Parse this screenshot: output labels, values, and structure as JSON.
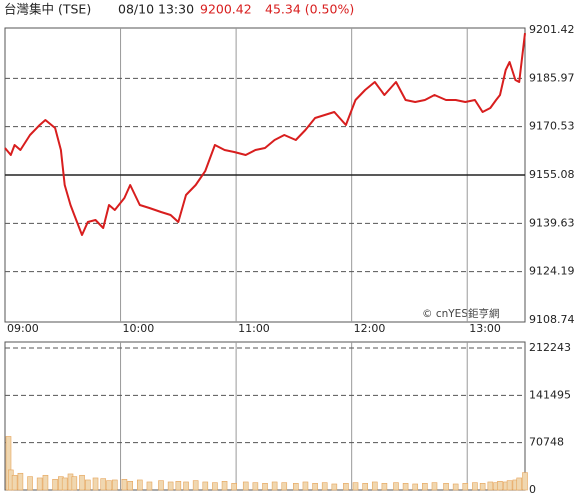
{
  "header": {
    "name": "台灣集中 (TSE)",
    "time": "08/10 13:30",
    "price": 9200.42,
    "change": "45.34 (0.50%)",
    "watermark": "© cnYES鉅亨網"
  },
  "chart_data": [
    {
      "type": "line",
      "color": "#d81e1e",
      "x": [
        "09:00",
        "09:03",
        "09:05",
        "09:08",
        "09:13",
        "09:18",
        "09:21",
        "09:26",
        "09:29",
        "09:31",
        "09:34",
        "09:36",
        "09:40",
        "09:43",
        "09:47",
        "09:51",
        "09:54",
        "09:57",
        "10:02",
        "10:05",
        "10:10",
        "10:15",
        "10:21",
        "10:26",
        "10:30",
        "10:34",
        "10:39",
        "10:44",
        "10:49",
        "10:54",
        "10:59",
        "11:05",
        "11:10",
        "11:15",
        "11:20",
        "11:25",
        "11:31",
        "11:36",
        "11:41",
        "11:46",
        "11:51",
        "11:57",
        "12:02",
        "12:07",
        "12:12",
        "12:17",
        "12:23",
        "12:28",
        "12:33",
        "12:38",
        "12:43",
        "12:49",
        "12:54",
        "12:59",
        "13:04",
        "13:08",
        "13:12",
        "13:15",
        "13:17",
        "13:20",
        "13:22",
        "13:25",
        "13:27",
        "13:30"
      ],
      "values": [
        9163.71,
        9161.47,
        9164.67,
        9163.07,
        9167.86,
        9171.06,
        9172.66,
        9170.1,
        9163.07,
        9151.88,
        9145.49,
        9142.29,
        9135.9,
        9140.06,
        9140.7,
        9138.14,
        9145.49,
        9143.89,
        9147.73,
        9151.88,
        9145.49,
        9144.53,
        9143.25,
        9142.29,
        9140.06,
        9148.69,
        9151.88,
        9156.4,
        9164.67,
        9163.07,
        9162.43,
        9161.47,
        9163.07,
        9163.71,
        9166.26,
        9167.86,
        9166.26,
        9169.46,
        9173.3,
        9174.25,
        9175.21,
        9171.06,
        9179.05,
        9182.24,
        9184.8,
        9180.65,
        9184.8,
        9179.05,
        9178.41,
        9179.05,
        9180.65,
        9179.05,
        9179.05,
        9178.41,
        9179.05,
        9175.21,
        9176.49,
        9179.05,
        9180.65,
        9188.64,
        9191.19,
        9185.44,
        9184.8,
        9200.42
      ],
      "xlim": [
        "09:00",
        "13:30"
      ],
      "xticks": [
        "09:00",
        "10:00",
        "11:00",
        "12:00",
        "13:00"
      ],
      "ylim": [
        9108.74,
        9201.42
      ],
      "yticks": [
        9108.74,
        9124.19,
        9139.63,
        9155.08,
        9170.53,
        9185.97,
        9201.42
      ],
      "reference_line": 9155.08,
      "grid": true
    },
    {
      "type": "bar",
      "color": "#f0d7b0",
      "values": [
        80000,
        30000,
        22000,
        25000,
        20000,
        18000,
        22000,
        16000,
        20000,
        18000,
        24000,
        20000,
        22000,
        15000,
        18000,
        17000,
        14000,
        15000,
        16000,
        13000,
        15000,
        12000,
        14000,
        12000,
        13000,
        12000,
        14000,
        12000,
        11000,
        13000,
        10000,
        12000,
        11000,
        10000,
        12000,
        11000,
        10000,
        12000,
        10000,
        11000,
        9000,
        10000,
        11000,
        10000,
        12000,
        10000,
        11000,
        10000,
        9000,
        10000,
        11000,
        10000,
        9000,
        10000,
        11000,
        10000,
        12000,
        11000,
        13000,
        12000,
        14000,
        15000,
        18000,
        26000
      ],
      "ylim": [
        0,
        212243
      ],
      "yticks": [
        0,
        70748,
        141495,
        212243
      ],
      "grid": true
    }
  ]
}
